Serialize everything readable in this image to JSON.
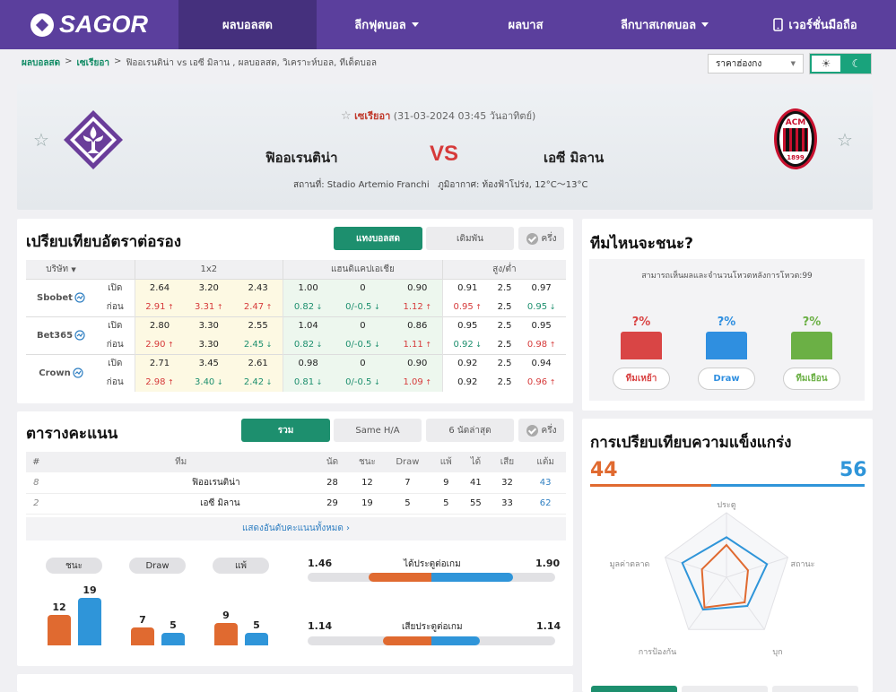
{
  "nav": {
    "logo": "SAGOR",
    "items": [
      {
        "label": "ผลบอลสด",
        "dropdown": false,
        "active": true
      },
      {
        "label": "ลีกฟุตบอล",
        "dropdown": true,
        "active": false
      },
      {
        "label": "ผลบาส",
        "dropdown": false,
        "active": false
      },
      {
        "label": "ลีกบาสเกตบอล",
        "dropdown": true,
        "active": false
      },
      {
        "label": "เวอร์ชั่นมือถือ",
        "dropdown": false,
        "active": false
      }
    ]
  },
  "breadcrumb": {
    "home": "ผลบอลสด",
    "sep1": ">",
    "league": "เซเรียอา",
    "sep2": ">",
    "current": "ฟิออเรนติน่า vs เอซี มิลาน ,  ผลบอลสด,  วิเคราะห์บอล,  ทีเด็ดบอล"
  },
  "odds_select": {
    "value": "ราคาฮ่องกง",
    "arrow": "▼"
  },
  "theme": {
    "light": "☀",
    "dark": "☾"
  },
  "match": {
    "league": "เซเรียอา",
    "datetime": "(31-03-2024 03:45 วันอาทิตย์)",
    "home": "ฟิออเรนติน่า",
    "away": "เอซี มิลาน",
    "vs": "VS",
    "venue": "สถานที่: Stadio Artemio Franchi",
    "weather": "ภูมิอากาศ: ท้องฟ้าโปร่ง, 12°C～13°C",
    "star": "☆",
    "away_crest_text": "ACM",
    "away_crest_year": "1899"
  },
  "odds": {
    "title": "เปรียบเทียบอัตราต่อรอง",
    "tabs": [
      "แทงบอลสด",
      "เดิมพัน"
    ],
    "half": "ครึ่ง",
    "headers": {
      "company": "บริษัท",
      "g1": "1x2",
      "g2": "แฮนดิแคปเอเชีย",
      "g3": "สูง/ต่ำ"
    },
    "rows": [
      {
        "company": "Sbobet",
        "open_label": "เปิด",
        "close_label": "ก่อน",
        "open": [
          "2.64",
          "3.20",
          "2.43",
          "1.00",
          "0",
          "0.90",
          "0.91",
          "2.5",
          "0.97"
        ],
        "close": [
          "2.91",
          "3.31",
          "2.47",
          "0.82",
          "0/-0.5",
          "1.12",
          "0.95",
          "2.5",
          "0.95"
        ],
        "dir": [
          "up",
          "up",
          "up",
          "dn",
          "dn",
          "up",
          "up",
          "",
          "dn"
        ]
      },
      {
        "company": "Bet365",
        "open_label": "เปิด",
        "close_label": "ก่อน",
        "open": [
          "2.80",
          "3.30",
          "2.55",
          "1.04",
          "0",
          "0.86",
          "0.95",
          "2.5",
          "0.95"
        ],
        "close": [
          "2.90",
          "3.30",
          "2.45",
          "0.82",
          "0/-0.5",
          "1.11",
          "0.92",
          "2.5",
          "0.98"
        ],
        "dir": [
          "up",
          "",
          "dn",
          "dn",
          "dn",
          "up",
          "dn",
          "",
          "up"
        ]
      },
      {
        "company": "Crown",
        "open_label": "เปิด",
        "close_label": "ก่อน",
        "open": [
          "2.71",
          "3.45",
          "2.61",
          "0.98",
          "0",
          "0.90",
          "0.92",
          "2.5",
          "0.94"
        ],
        "close": [
          "2.98",
          "3.40",
          "2.42",
          "0.81",
          "0/-0.5",
          "1.09",
          "0.92",
          "2.5",
          "0.96"
        ],
        "dir": [
          "up",
          "dn",
          "dn",
          "dn",
          "dn",
          "up",
          "",
          "",
          "up"
        ]
      }
    ]
  },
  "vote": {
    "title": "ทีมไหนจะชนะ?",
    "note": "สามารถเห็นผลและจำนวนโหวตหลังการโหวต:99",
    "options": [
      {
        "pct": "?%",
        "label": "ทีมเหย้า",
        "color": "#d94545"
      },
      {
        "pct": "?%",
        "label": "Draw",
        "color": "#2f8fe0"
      },
      {
        "pct": "?%",
        "label": "ทีมเยือน",
        "color": "#6bb045"
      }
    ]
  },
  "standings": {
    "title": "ตารางคะแนน",
    "tabs": [
      "รวม",
      "Same H/A",
      "6 นัดล่าสุด"
    ],
    "half": "ครึ่ง",
    "headers": [
      "#",
      "ทีม",
      "นัด",
      "ชนะ",
      "Draw",
      "แพ้",
      "ได้",
      "เสีย",
      "แต้ม"
    ],
    "rows": [
      [
        "8",
        "ฟิออเรนติน่า",
        "28",
        "12",
        "7",
        "9",
        "41",
        "32",
        "43"
      ],
      [
        "2",
        "เอซี มิลาน",
        "29",
        "19",
        "5",
        "5",
        "55",
        "33",
        "62"
      ]
    ],
    "show_all": "แสดงอันดับคะแนนทั้งหมด ›"
  },
  "compare": {
    "pills": [
      "ชนะ",
      "Draw",
      "แพ้"
    ],
    "bars": [
      {
        "home": 12,
        "away": 19
      },
      {
        "home": 7,
        "away": 5
      },
      {
        "home": 9,
        "away": 5
      }
    ],
    "goals_for": {
      "label": "ได้ประตูต่อเกม",
      "home": "1.46",
      "away": "1.90"
    },
    "goals_against": {
      "label": "เสียประตูต่อเกม",
      "home": "1.14",
      "away": "1.14"
    }
  },
  "strength": {
    "title": "การเปรียบเทียบความแข็งแกร่ง",
    "home": "44",
    "away": "56",
    "axes": [
      "ประตู",
      "สถานะ",
      "บุก",
      "การป้องกัน",
      "มูลค่าตลาด"
    ]
  },
  "colors": {
    "primary": "#5b3f9d",
    "accent": "#1d8f6e",
    "home": "#e06a30",
    "away": "#2f95d9"
  }
}
